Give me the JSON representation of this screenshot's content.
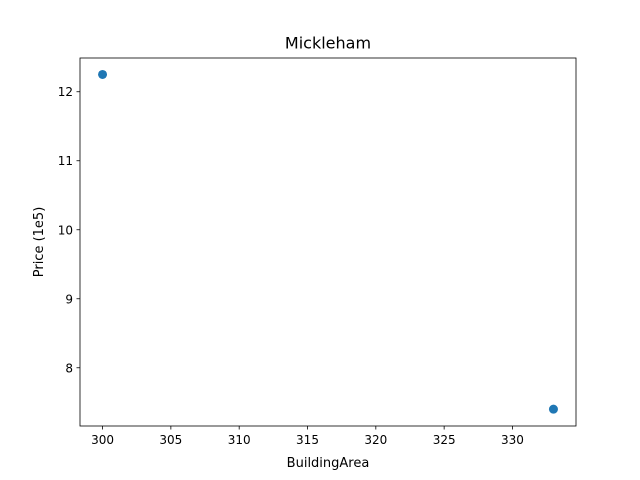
{
  "chart_data": {
    "type": "scatter",
    "title": "Mickleham",
    "xlabel": "BuildingArea",
    "ylabel": "Price (1e5)",
    "xlim": [
      298.35,
      334.65
    ],
    "ylim": [
      7.156,
      12.489
    ],
    "xticks": [
      300,
      305,
      310,
      315,
      320,
      325,
      330
    ],
    "yticks": [
      8,
      9,
      10,
      11,
      12
    ],
    "grid": false,
    "legend": "none",
    "series": [
      {
        "color": "#1f77b4",
        "points": [
          {
            "x": 300,
            "y": 12.25
          },
          {
            "x": 333,
            "y": 7.4
          }
        ]
      }
    ]
  }
}
